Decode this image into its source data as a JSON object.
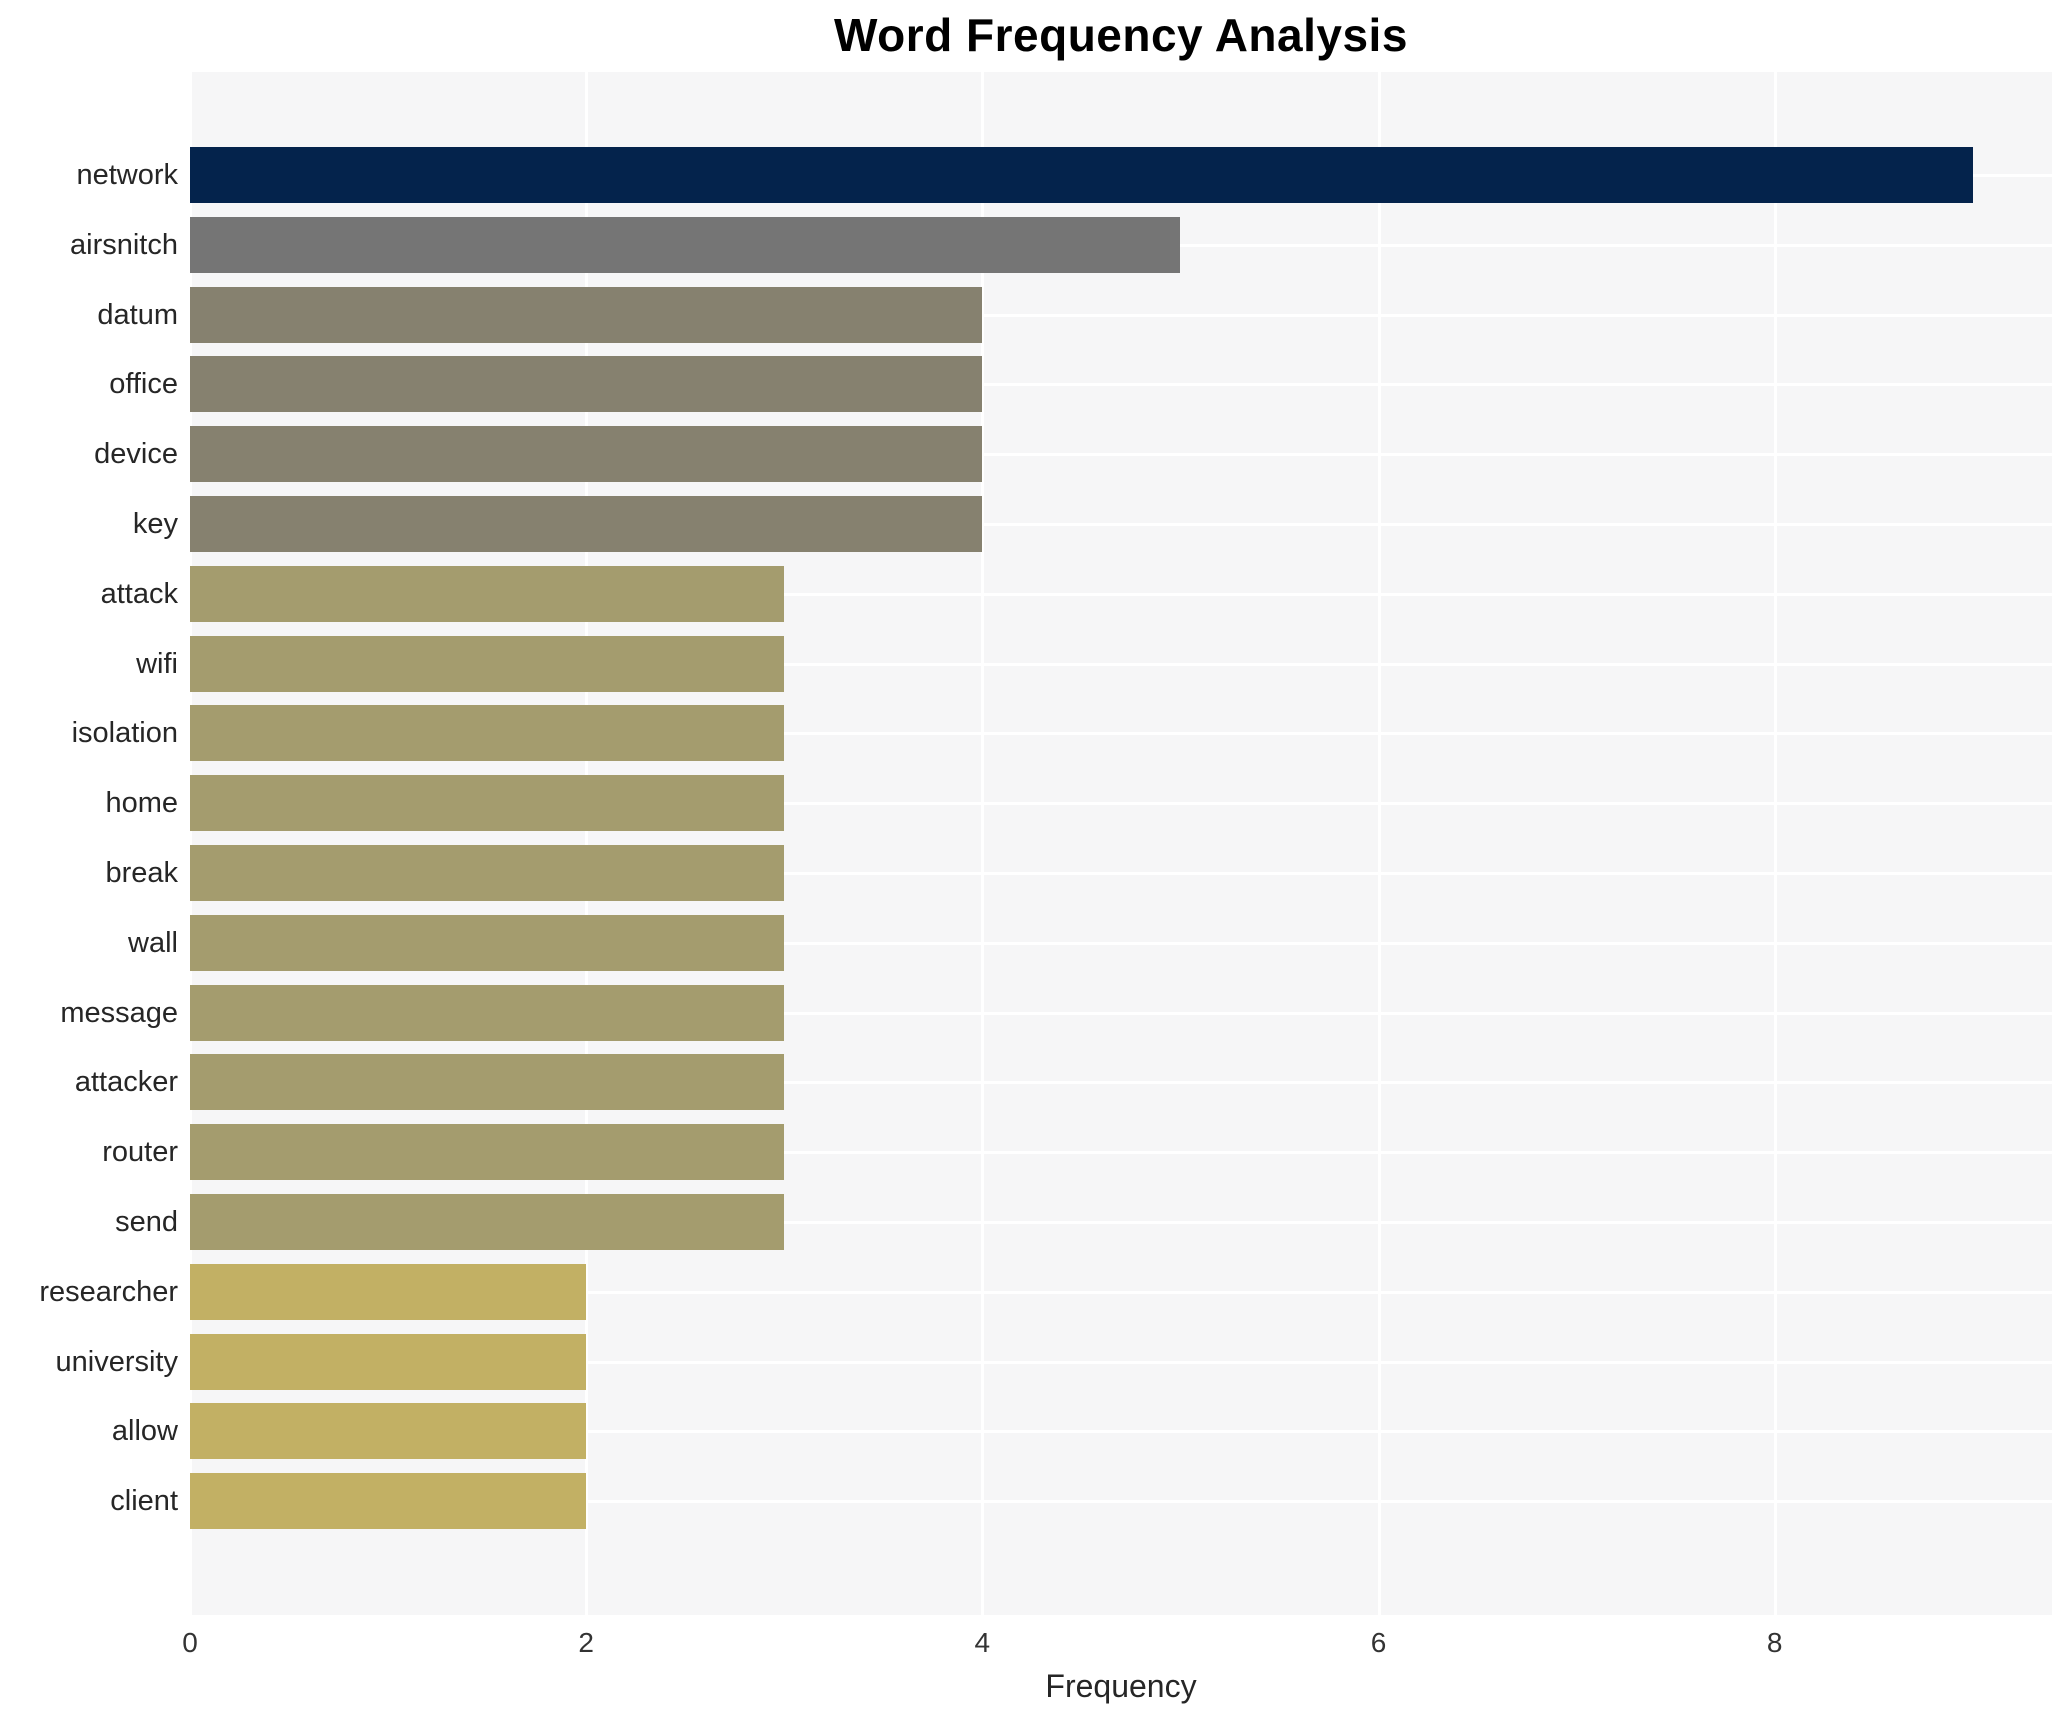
{
  "chart_data": {
    "type": "bar",
    "orientation": "horizontal",
    "title": "Word Frequency Analysis",
    "xlabel": "Frequency",
    "ylabel": "",
    "categories": [
      "network",
      "airsnitch",
      "datum",
      "office",
      "device",
      "key",
      "attack",
      "wifi",
      "isolation",
      "home",
      "break",
      "wall",
      "message",
      "attacker",
      "router",
      "send",
      "researcher",
      "university",
      "allow",
      "client"
    ],
    "values": [
      9,
      5,
      4,
      4,
      4,
      4,
      3,
      3,
      3,
      3,
      3,
      3,
      3,
      3,
      3,
      3,
      2,
      2,
      2,
      2
    ],
    "bar_colors": [
      "#04234c",
      "#757575",
      "#86816f",
      "#86816f",
      "#86816f",
      "#86816f",
      "#a49c6e",
      "#a49c6e",
      "#a49c6e",
      "#a49c6e",
      "#a49c6e",
      "#a49c6e",
      "#a49c6e",
      "#a49c6e",
      "#a49c6e",
      "#a49c6e",
      "#c2b064",
      "#c2b064",
      "#c2b064",
      "#c2b064"
    ],
    "xticks": [
      0,
      2,
      4,
      6,
      8
    ],
    "xlim": [
      0,
      9.4
    ],
    "grid": "white gridlines on light gray plot background",
    "legend": "none",
    "colors": {
      "plot_background": "#f6f6f7",
      "figure_background": "#ffffff",
      "gridline": "#ffffff",
      "title_text": "#000000",
      "tick_text": "#333333",
      "label_text": "#262626"
    }
  }
}
